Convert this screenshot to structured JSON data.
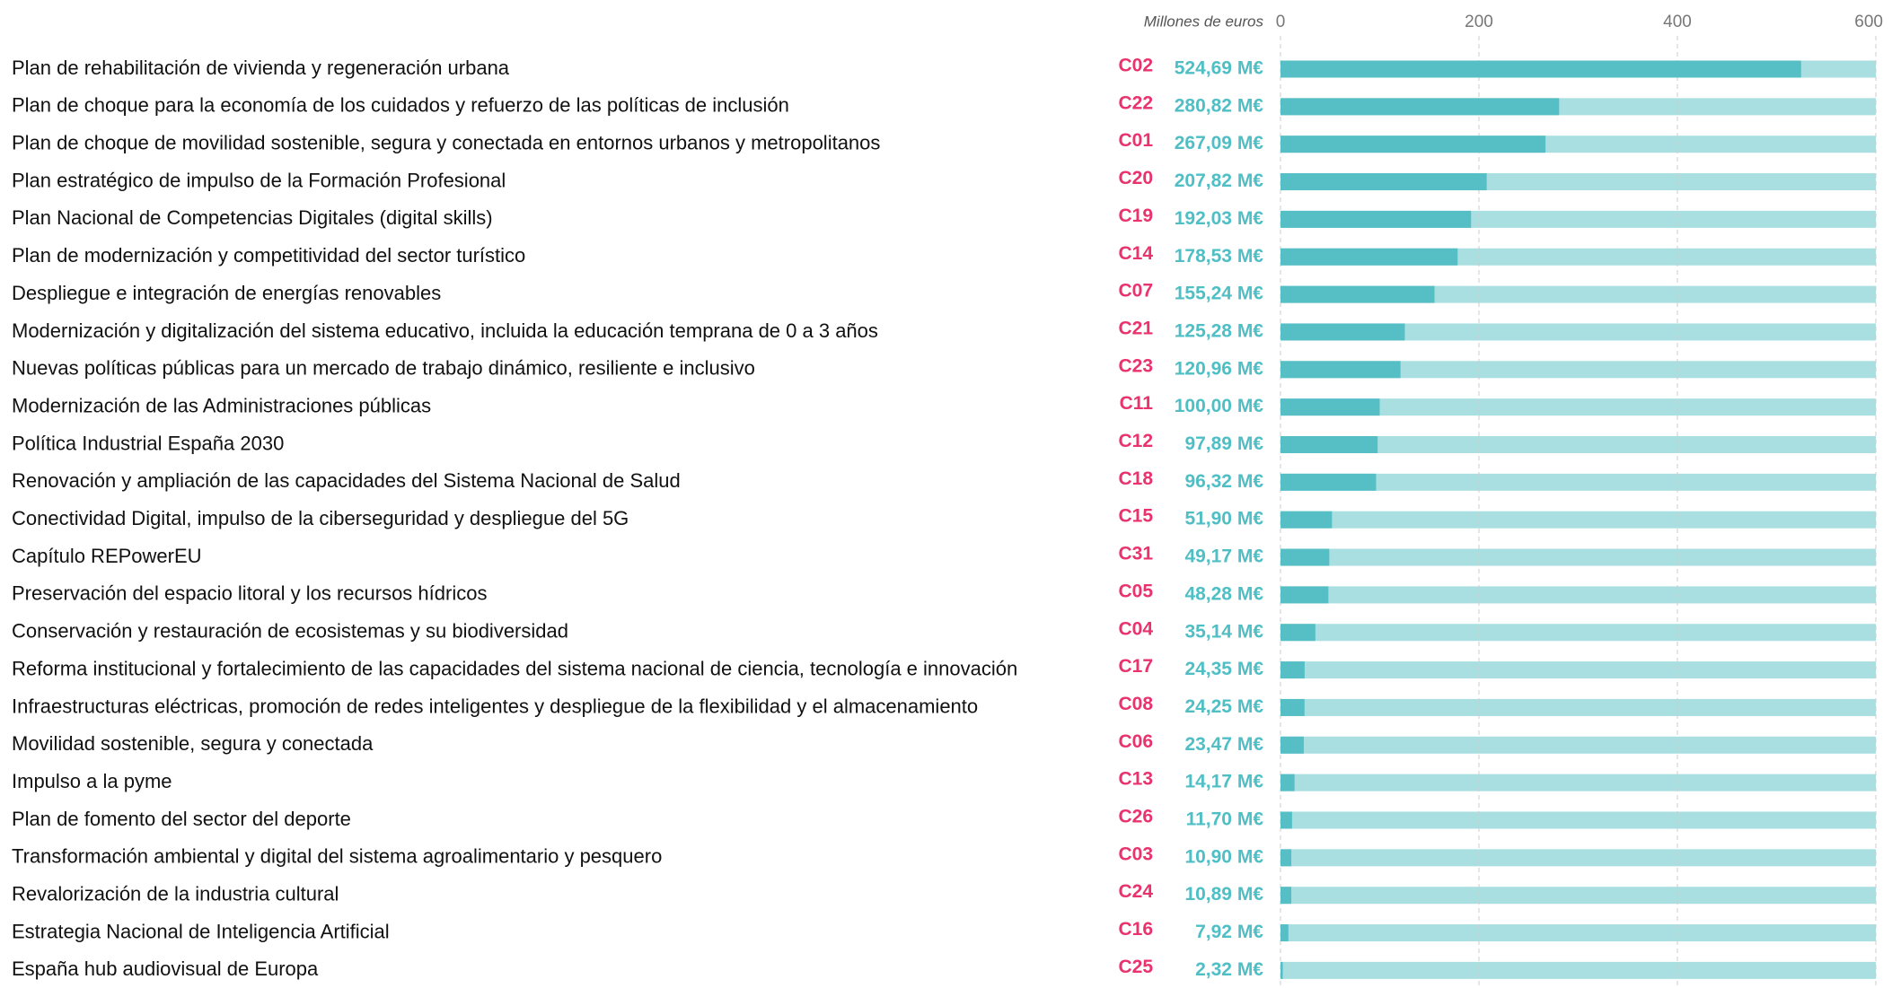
{
  "chart_data": {
    "type": "bar",
    "orientation": "horizontal",
    "x_axis_label": "Millones de euros",
    "xlim": [
      0,
      600
    ],
    "xticks": [
      0,
      200,
      400,
      600
    ],
    "grid": true,
    "color": "#56bfc6",
    "track_color": "#a9dfe1",
    "code_color": "#e8336e",
    "label_color": "#4fbfc5",
    "categories": [
      "Plan de rehabilitación de vivienda y regeneración urbana",
      "Plan de choque para la economía de los cuidados y refuerzo de las políticas de inclusión",
      "Plan de choque de movilidad sostenible, segura y conectada en entornos urbanos y metropolitanos",
      "Plan estratégico de impulso de la Formación Profesional",
      "Plan Nacional de Competencias Digitales (digital skills)",
      "Plan de modernización y competitividad del sector turístico",
      "Despliegue e integración de energías renovables",
      "Modernización y digitalización del sistema educativo, incluida la educación temprana de 0 a 3 años",
      "Nuevas políticas públicas para un mercado de trabajo dinámico, resiliente e inclusivo",
      "Modernización de las Administraciones públicas",
      "Política Industrial España 2030",
      "Renovación y ampliación de las capacidades del Sistema Nacional de Salud",
      "Conectividad Digital, impulso de la ciberseguridad y despliegue del 5G",
      "Capítulo REPowerEU",
      "Preservación del espacio litoral y los recursos hídricos",
      "Conservación y restauración de ecosistemas y su biodiversidad",
      "Reforma institucional y fortalecimiento de las capacidades del sistema nacional de ciencia, tecnología e innovación",
      "Infraestructuras eléctricas, promoción de redes inteligentes y despliegue de la flexibilidad y el almacenamiento",
      "Movilidad sostenible, segura y conectada",
      "Impulso a la pyme",
      "Plan de fomento del sector del deporte",
      "Transformación ambiental y digital del sistema agroalimentario y pesquero",
      "Revalorización de la industria cultural",
      "Estrategia Nacional de Inteligencia Artificial",
      "España hub audiovisual de Europa"
    ],
    "codes": [
      "C02",
      "C22",
      "C01",
      "C20",
      "C19",
      "C14",
      "C07",
      "C21",
      "C23",
      "C11",
      "C12",
      "C18",
      "C15",
      "C31",
      "C05",
      "C04",
      "C17",
      "C08",
      "C06",
      "C13",
      "C26",
      "C03",
      "C24",
      "C16",
      "C25"
    ],
    "values": [
      524.69,
      280.82,
      267.09,
      207.82,
      192.03,
      178.53,
      155.24,
      125.28,
      120.96,
      100.0,
      97.89,
      96.32,
      51.9,
      49.17,
      48.28,
      35.14,
      24.35,
      24.25,
      23.47,
      14.17,
      11.7,
      10.9,
      10.89,
      7.92,
      2.32
    ],
    "value_labels": [
      "524,69 M€",
      "280,82 M€",
      "267,09 M€",
      "207,82 M€",
      "192,03 M€",
      "178,53 M€",
      "155,24 M€",
      "125,28 M€",
      "120,96 M€",
      "100,00 M€",
      "97,89 M€",
      "96,32 M€",
      "51,90 M€",
      "49,17 M€",
      "48,28 M€",
      "35,14 M€",
      "24,35 M€",
      "24,25 M€",
      "23,47 M€",
      "14,17 M€",
      "11,70 M€",
      "10,90 M€",
      "10,89 M€",
      "7,92 M€",
      "2,32 M€"
    ]
  }
}
